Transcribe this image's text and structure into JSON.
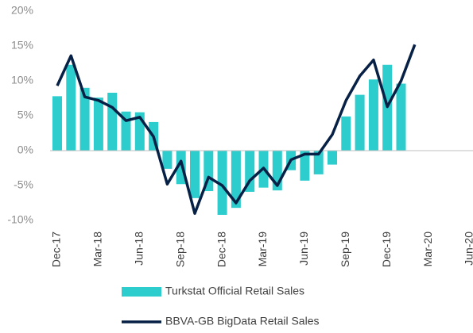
{
  "chart_data": {
    "type": "bar_line",
    "categories": [
      "Dec-17",
      null,
      null,
      "Mar-18",
      null,
      null,
      "Jun-18",
      null,
      null,
      "Sep-18",
      null,
      null,
      "Dec-18",
      null,
      null,
      "Mar-19",
      null,
      null,
      "Jun-19",
      null,
      null,
      "Sep-19",
      null,
      null,
      "Dec-19",
      null,
      null,
      "Mar-20",
      null,
      null,
      "Jun-20"
    ],
    "series": [
      {
        "name": "Turkstat Official Retail Sales",
        "type": "bar",
        "color": "#2dcccd",
        "values": [
          7.8,
          12.3,
          9.0,
          7.6,
          8.3,
          5.6,
          5.5,
          4.1,
          -2.6,
          -4.8,
          -6.8,
          -5.8,
          -9.2,
          -8.2,
          -5.9,
          -5.3,
          -5.7,
          -2.8,
          -4.3,
          -3.4,
          -2.0,
          4.9,
          8.0,
          10.2,
          12.3,
          9.6,
          null,
          null,
          null,
          null,
          null
        ]
      },
      {
        "name": "BBVA-GB BigData Retail Sales",
        "type": "line",
        "color": "#072146",
        "values": [
          9.3,
          13.6,
          7.7,
          7.2,
          6.2,
          4.3,
          4.8,
          2.0,
          -4.8,
          -1.5,
          -9.0,
          -3.8,
          -5.0,
          -7.5,
          -4.3,
          -2.5,
          -5.0,
          -1.3,
          -0.5,
          -0.5,
          2.3,
          7.2,
          10.7,
          13.0,
          6.3,
          10.0,
          15.2,
          null,
          null,
          null,
          null
        ]
      }
    ],
    "ylim": [
      -10,
      20
    ],
    "yticks": [
      {
        "value": -10,
        "label": "-10%"
      },
      {
        "value": -5,
        "label": "-5%"
      },
      {
        "value": 0,
        "label": "0%"
      },
      {
        "value": 5,
        "label": "5%"
      },
      {
        "value": 10,
        "label": "10%"
      },
      {
        "value": 15,
        "label": "15%"
      },
      {
        "value": 20,
        "label": "20%"
      }
    ]
  }
}
